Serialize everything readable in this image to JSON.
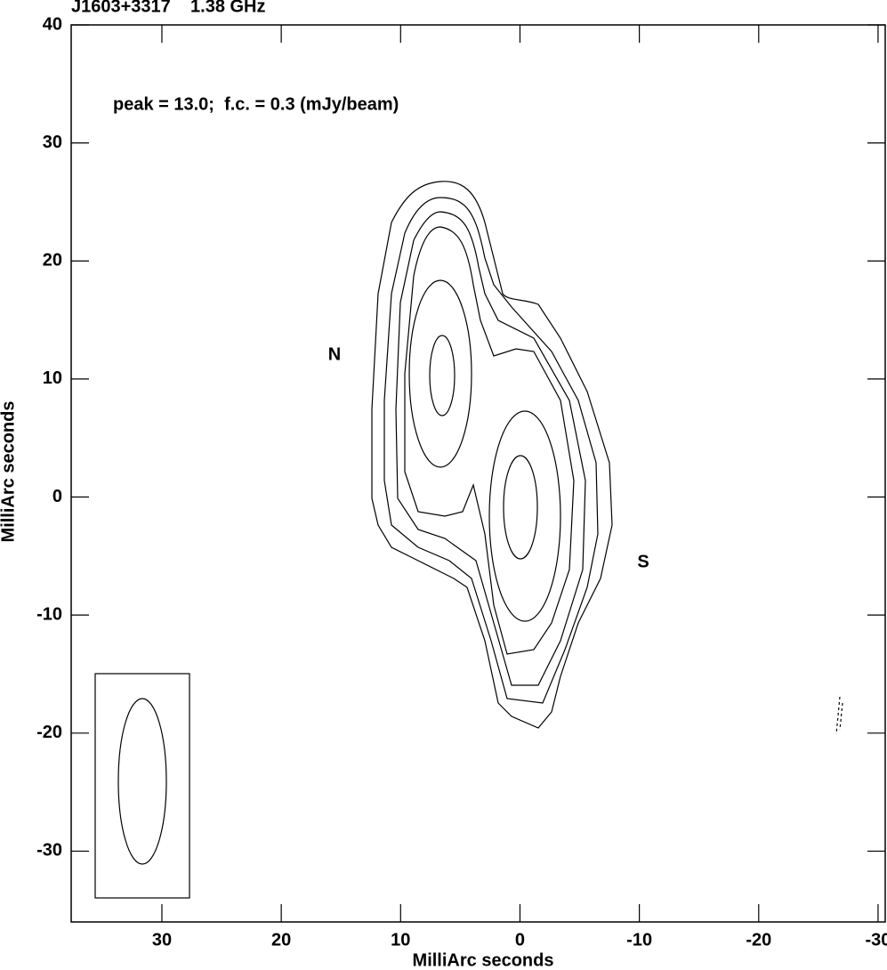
{
  "chart_data": {
    "type": "contour",
    "title": "J1603+3317    1.38 GHz",
    "annotation": "peak = 13.0;  f.c. = 0.3 (mJy/beam)",
    "markers": [
      "N",
      "S"
    ],
    "xlabel": "MilliArc seconds",
    "ylabel": "MilliArc seconds",
    "xlim": [
      37.6,
      -30.6
    ],
    "ylim": [
      -36,
      40
    ],
    "xticks": [
      30,
      20,
      10,
      0,
      -10,
      -20,
      -30
    ],
    "yticks": [
      40,
      30,
      20,
      10,
      0,
      -10,
      -20,
      -30
    ]
  }
}
